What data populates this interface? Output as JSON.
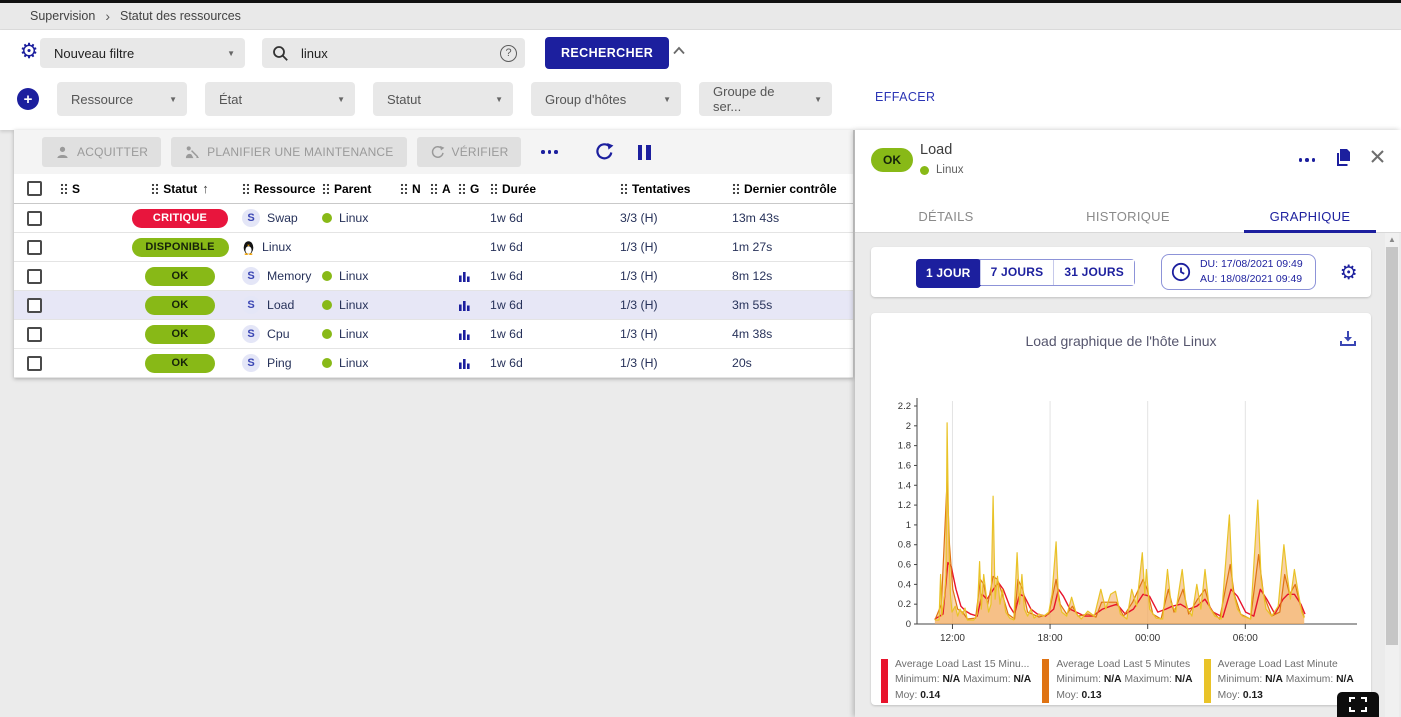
{
  "colors": {
    "accent": "#1c1f9e",
    "ok_green": "#88b917",
    "critical_red": "#e8153d",
    "selected_row": "#e7e7f6",
    "legend_red": "#e8132c",
    "legend_orange": "#df7313",
    "legend_yellow": "#e9c328",
    "area_fill": "rgba(243,172,96,0.55)"
  },
  "breadcrumb": {
    "items": [
      "Supervision",
      "Statut des ressources"
    ]
  },
  "filter_bar": {
    "saved_filter_value": "Nouveau filtre",
    "search_value": "linux",
    "search_button": "RECHERCHER",
    "criteria": [
      {
        "label": "Ressource"
      },
      {
        "label": "État"
      },
      {
        "label": "Statut"
      },
      {
        "label": "Group d'hôtes"
      },
      {
        "label": "Groupe de ser..."
      }
    ],
    "clear_button": "EFFACER"
  },
  "toolbar": {
    "acknowledge": "ACQUITTER",
    "downtime": "PLANIFIER UNE MAINTENANCE",
    "check": "VÉRIFIER"
  },
  "table": {
    "columns": [
      {
        "label": "S",
        "sorted": false
      },
      {
        "label": "Statut",
        "sorted": true
      },
      {
        "label": "Ressource",
        "sorted": false
      },
      {
        "label": "Parent",
        "sorted": false
      },
      {
        "label": "N",
        "sorted": false
      },
      {
        "label": "A",
        "sorted": false
      },
      {
        "label": "G",
        "sorted": false
      },
      {
        "label": "Durée",
        "sorted": false
      },
      {
        "label": "Tentatives",
        "sorted": false
      },
      {
        "label": "Dernier contrôle",
        "sorted": false
      }
    ],
    "rows": [
      {
        "status": "CRITIQUE",
        "status_type": "critical",
        "icon": "service",
        "resource": "Swap",
        "parent": "Linux",
        "graph": false,
        "duration": "1w 6d",
        "tries": "3/3 (H)",
        "last_check": "13m 43s",
        "selected": false
      },
      {
        "status": "DISPONIBLE",
        "status_type": "ok",
        "icon": "host",
        "resource": "Linux",
        "parent": "",
        "graph": false,
        "duration": "1w 6d",
        "tries": "1/3 (H)",
        "last_check": "1m 27s",
        "selected": false
      },
      {
        "status": "OK",
        "status_type": "ok",
        "icon": "service",
        "resource": "Memory",
        "parent": "Linux",
        "graph": true,
        "duration": "1w 6d",
        "tries": "1/3 (H)",
        "last_check": "8m 12s",
        "selected": false
      },
      {
        "status": "OK",
        "status_type": "ok",
        "icon": "service",
        "resource": "Load",
        "parent": "Linux",
        "graph": true,
        "duration": "1w 6d",
        "tries": "1/3 (H)",
        "last_check": "3m 55s",
        "selected": true
      },
      {
        "status": "OK",
        "status_type": "ok",
        "icon": "service",
        "resource": "Cpu",
        "parent": "Linux",
        "graph": true,
        "duration": "1w 6d",
        "tries": "1/3 (H)",
        "last_check": "4m 38s",
        "selected": false
      },
      {
        "status": "OK",
        "status_type": "ok",
        "icon": "service",
        "resource": "Ping",
        "parent": "Linux",
        "graph": true,
        "duration": "1w 6d",
        "tries": "1/3 (H)",
        "last_check": "20s",
        "selected": false
      }
    ]
  },
  "panel": {
    "status": "OK",
    "title": "Load",
    "host": "Linux",
    "tabs": [
      {
        "label": "DÉTAILS",
        "active": false
      },
      {
        "label": "HISTORIQUE",
        "active": false
      },
      {
        "label": "GRAPHIQUE",
        "active": true
      }
    ],
    "time_buttons": [
      {
        "label": "1 JOUR",
        "active": true
      },
      {
        "label": "7 JOURS",
        "active": false
      },
      {
        "label": "31 JOURS",
        "active": false
      }
    ],
    "date_from": "DU: 17/08/2021 09:49",
    "date_to": "AU: 18/08/2021 09:49"
  },
  "chart_data": {
    "type": "area",
    "title": "Load graphique de l'hôte Linux",
    "x_unit": "hours since 17/08/2021 09:49",
    "xlim": [
      0,
      26.8
    ],
    "ylim": [
      0,
      2.2
    ],
    "grid": "vertical",
    "legend_position": "bottom",
    "y_ticks": [
      [
        0,
        "0"
      ],
      [
        0.2,
        "0.2"
      ],
      [
        0.4,
        "0.4"
      ],
      [
        0.6,
        "0.6"
      ],
      [
        0.8,
        "0.8"
      ],
      [
        1,
        "1"
      ],
      [
        1.2,
        "1.2"
      ],
      [
        1.4,
        "1.4"
      ],
      [
        1.6,
        "1.6"
      ],
      [
        1.8,
        "1.8"
      ],
      [
        2,
        "2"
      ],
      [
        2.2,
        "2.2"
      ]
    ],
    "x_ticks": [
      [
        2.18,
        "12:00"
      ],
      [
        8.18,
        "18:00"
      ],
      [
        14.18,
        "00:00"
      ],
      [
        20.18,
        "06:00"
      ]
    ],
    "legend_labels": {
      "min": "Minimum:",
      "max": "Maximum:",
      "avg": "Moy:"
    },
    "series": [
      {
        "name": "Average Load Last 15 Minu...",
        "color": "#e8132c",
        "width": 1.4,
        "fill": null,
        "min": "N/A",
        "max": "N/A",
        "avg": "0.14",
        "points": [
          [
            1.1,
            0.05
          ],
          [
            1.6,
            0.1
          ],
          [
            1.9,
            0.62
          ],
          [
            2.1,
            0.58
          ],
          [
            2.4,
            0.35
          ],
          [
            2.7,
            0.18
          ],
          [
            3.0,
            0.13
          ],
          [
            3.3,
            0.1
          ],
          [
            3.7,
            0.08
          ],
          [
            4.0,
            0.3
          ],
          [
            4.3,
            0.25
          ],
          [
            4.7,
            0.35
          ],
          [
            5.0,
            0.42
          ],
          [
            5.3,
            0.35
          ],
          [
            5.7,
            0.18
          ],
          [
            6.0,
            0.1
          ],
          [
            6.3,
            0.3
          ],
          [
            6.6,
            0.28
          ],
          [
            7.0,
            0.15
          ],
          [
            7.4,
            0.1
          ],
          [
            7.9,
            0.08
          ],
          [
            8.4,
            0.15
          ],
          [
            8.7,
            0.35
          ],
          [
            9.0,
            0.28
          ],
          [
            9.4,
            0.15
          ],
          [
            9.8,
            0.12
          ],
          [
            10.3,
            0.08
          ],
          [
            10.8,
            0.08
          ],
          [
            11.4,
            0.15
          ],
          [
            11.9,
            0.18
          ],
          [
            12.3,
            0.2
          ],
          [
            12.8,
            0.1
          ],
          [
            13.3,
            0.15
          ],
          [
            13.9,
            0.3
          ],
          [
            14.3,
            0.28
          ],
          [
            14.8,
            0.12
          ],
          [
            15.3,
            0.15
          ],
          [
            15.7,
            0.18
          ],
          [
            16.2,
            0.2
          ],
          [
            16.7,
            0.15
          ],
          [
            17.2,
            0.18
          ],
          [
            17.7,
            0.25
          ],
          [
            18.2,
            0.12
          ],
          [
            18.8,
            0.07
          ],
          [
            19.3,
            0.35
          ],
          [
            19.7,
            0.28
          ],
          [
            20.2,
            0.12
          ],
          [
            20.7,
            0.08
          ],
          [
            21.1,
            0.35
          ],
          [
            21.5,
            0.25
          ],
          [
            22.0,
            0.1
          ],
          [
            22.5,
            0.25
          ],
          [
            22.8,
            0.3
          ],
          [
            23.2,
            0.3
          ],
          [
            23.6,
            0.2
          ],
          [
            23.85,
            0.1
          ]
        ]
      },
      {
        "name": "Average Load Last 5 Minutes",
        "color": "#df7313",
        "width": 1.2,
        "fill": "rgba(243,172,96,0.45)",
        "min": "N/A",
        "max": "N/A",
        "avg": "0.13",
        "points": [
          [
            1.1,
            0.04
          ],
          [
            1.5,
            0.2
          ],
          [
            1.85,
            1.45
          ],
          [
            2.0,
            0.8
          ],
          [
            2.2,
            0.35
          ],
          [
            2.5,
            0.15
          ],
          [
            2.8,
            0.12
          ],
          [
            3.1,
            0.05
          ],
          [
            3.6,
            0.06
          ],
          [
            3.9,
            0.45
          ],
          [
            4.1,
            0.4
          ],
          [
            4.35,
            0.2
          ],
          [
            4.68,
            0.48
          ],
          [
            4.95,
            0.45
          ],
          [
            5.25,
            0.3
          ],
          [
            5.6,
            0.1
          ],
          [
            6.0,
            0.05
          ],
          [
            6.2,
            0.45
          ],
          [
            6.5,
            0.35
          ],
          [
            6.8,
            0.12
          ],
          [
            7.1,
            0.1
          ],
          [
            7.5,
            0.07
          ],
          [
            8.1,
            0.1
          ],
          [
            8.55,
            0.45
          ],
          [
            8.8,
            0.2
          ],
          [
            9.2,
            0.1
          ],
          [
            9.55,
            0.18
          ],
          [
            9.9,
            0.08
          ],
          [
            10.5,
            0.1
          ],
          [
            11.0,
            0.07
          ],
          [
            11.35,
            0.22
          ],
          [
            11.9,
            0.22
          ],
          [
            12.25,
            0.22
          ],
          [
            12.7,
            0.08
          ],
          [
            13.25,
            0.22
          ],
          [
            13.9,
            0.45
          ],
          [
            14.15,
            0.35
          ],
          [
            14.5,
            0.1
          ],
          [
            15.0,
            0.05
          ],
          [
            15.45,
            0.35
          ],
          [
            15.8,
            0.12
          ],
          [
            16.35,
            0.35
          ],
          [
            16.7,
            0.1
          ],
          [
            17.25,
            0.25
          ],
          [
            17.7,
            0.35
          ],
          [
            18.05,
            0.15
          ],
          [
            18.6,
            0.05
          ],
          [
            19.25,
            0.6
          ],
          [
            19.5,
            0.3
          ],
          [
            19.9,
            0.1
          ],
          [
            20.5,
            0.05
          ],
          [
            21.0,
            0.7
          ],
          [
            21.3,
            0.3
          ],
          [
            21.8,
            0.08
          ],
          [
            22.3,
            0.12
          ],
          [
            22.6,
            0.5
          ],
          [
            22.9,
            0.3
          ],
          [
            23.25,
            0.4
          ],
          [
            23.55,
            0.2
          ],
          [
            23.8,
            0.07
          ]
        ]
      },
      {
        "name": "Average Load Last Minute",
        "color": "#e9c328",
        "width": 1.2,
        "fill": "rgba(243,172,96,0.55)",
        "min": "N/A",
        "max": "N/A",
        "avg": "0.13",
        "points": [
          [
            1.1,
            0.04
          ],
          [
            1.35,
            0.04
          ],
          [
            1.45,
            0.5
          ],
          [
            1.52,
            0.08
          ],
          [
            1.7,
            0.3
          ],
          [
            1.78,
            0.5
          ],
          [
            1.85,
            2.03
          ],
          [
            1.95,
            0.9
          ],
          [
            2.05,
            0.3
          ],
          [
            2.15,
            0.12
          ],
          [
            2.35,
            0.18
          ],
          [
            2.5,
            0.08
          ],
          [
            2.65,
            0.15
          ],
          [
            2.8,
            0.1
          ],
          [
            2.95,
            0.16
          ],
          [
            3.1,
            0.04
          ],
          [
            3.5,
            0.04
          ],
          [
            3.7,
            0.1
          ],
          [
            3.85,
            0.63
          ],
          [
            3.95,
            0.15
          ],
          [
            4.1,
            0.5
          ],
          [
            4.25,
            0.3
          ],
          [
            4.4,
            0.12
          ],
          [
            4.55,
            0.2
          ],
          [
            4.68,
            1.29
          ],
          [
            4.8,
            0.25
          ],
          [
            4.95,
            0.48
          ],
          [
            5.1,
            0.2
          ],
          [
            5.25,
            0.35
          ],
          [
            5.45,
            0.12
          ],
          [
            5.7,
            0.06
          ],
          [
            5.95,
            0.04
          ],
          [
            6.15,
            0.72
          ],
          [
            6.3,
            0.2
          ],
          [
            6.45,
            0.5
          ],
          [
            6.6,
            0.15
          ],
          [
            6.8,
            0.08
          ],
          [
            7.0,
            0.15
          ],
          [
            7.2,
            0.06
          ],
          [
            7.5,
            0.1
          ],
          [
            7.8,
            0.08
          ],
          [
            8.1,
            0.12
          ],
          [
            8.3,
            0.3
          ],
          [
            8.55,
            0.83
          ],
          [
            8.7,
            0.25
          ],
          [
            8.9,
            0.12
          ],
          [
            9.2,
            0.08
          ],
          [
            9.5,
            0.27
          ],
          [
            9.8,
            0.1
          ],
          [
            10.1,
            0.05
          ],
          [
            10.5,
            0.13
          ],
          [
            10.9,
            0.08
          ],
          [
            11.3,
            0.35
          ],
          [
            11.6,
            0.15
          ],
          [
            11.9,
            0.3
          ],
          [
            12.2,
            0.33
          ],
          [
            12.5,
            0.1
          ],
          [
            12.9,
            0.05
          ],
          [
            13.2,
            0.35
          ],
          [
            13.5,
            0.18
          ],
          [
            13.85,
            0.72
          ],
          [
            14.0,
            0.3
          ],
          [
            14.1,
            0.55
          ],
          [
            14.3,
            0.15
          ],
          [
            14.7,
            0.06
          ],
          [
            15.1,
            0.05
          ],
          [
            15.4,
            0.55
          ],
          [
            15.6,
            0.22
          ],
          [
            15.9,
            0.12
          ],
          [
            16.3,
            0.55
          ],
          [
            16.55,
            0.18
          ],
          [
            16.9,
            0.08
          ],
          [
            17.2,
            0.4
          ],
          [
            17.45,
            0.15
          ],
          [
            17.7,
            0.55
          ],
          [
            17.95,
            0.18
          ],
          [
            18.3,
            0.08
          ],
          [
            18.7,
            0.05
          ],
          [
            19.2,
            1.1
          ],
          [
            19.4,
            0.35
          ],
          [
            19.7,
            0.15
          ],
          [
            20.0,
            0.08
          ],
          [
            20.5,
            0.05
          ],
          [
            20.95,
            1.25
          ],
          [
            21.15,
            0.45
          ],
          [
            21.45,
            0.15
          ],
          [
            21.8,
            0.08
          ],
          [
            22.2,
            0.18
          ],
          [
            22.55,
            0.8
          ],
          [
            22.75,
            0.5
          ],
          [
            22.95,
            0.25
          ],
          [
            23.2,
            0.55
          ],
          [
            23.45,
            0.3
          ],
          [
            23.65,
            0.12
          ],
          [
            23.8,
            0.06
          ]
        ]
      }
    ]
  }
}
